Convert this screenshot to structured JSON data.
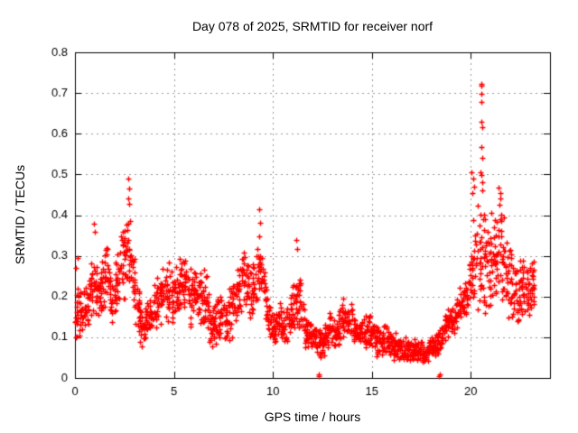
{
  "chart_data": {
    "type": "scatter",
    "title": "Day 078 of 2025, SRMTID for receiver norf",
    "xlabel": "GPS time / hours",
    "ylabel": "SRMTID / TECUs",
    "xlim": [
      0,
      24
    ],
    "ylim": [
      0,
      0.8
    ],
    "x_max_data": 23.2,
    "xticks": {
      "values": [
        0,
        5,
        10,
        15,
        20
      ],
      "labels": [
        "0",
        "5",
        "10",
        "15",
        "20"
      ]
    },
    "yticks": {
      "values": [
        0,
        0.1,
        0.2,
        0.3,
        0.4,
        0.5,
        0.6,
        0.7,
        0.8
      ],
      "labels": [
        "0",
        "0.1",
        "0.2",
        "0.3",
        "0.4",
        "0.5",
        "0.6",
        "0.7",
        "0.8"
      ]
    },
    "grid": true,
    "legend": null,
    "marker": "plus",
    "marker_size_px": 7,
    "colors": {
      "marker": "#ff0000",
      "grid": "#999999",
      "frame": "#000000",
      "background": "#ffffff",
      "text": "#000000"
    },
    "band_bin_hours": 0.25,
    "points_per_bin": 20,
    "density_bands": [
      [
        0.09,
        0.27
      ],
      [
        0.1,
        0.22
      ],
      [
        0.11,
        0.25
      ],
      [
        0.14,
        0.34
      ],
      [
        0.13,
        0.3
      ],
      [
        0.14,
        0.32
      ],
      [
        0.18,
        0.35
      ],
      [
        0.1,
        0.26
      ],
      [
        0.14,
        0.34
      ],
      [
        0.18,
        0.42
      ],
      [
        0.2,
        0.46
      ],
      [
        0.15,
        0.36
      ],
      [
        0.1,
        0.26
      ],
      [
        0.06,
        0.18
      ],
      [
        0.08,
        0.2
      ],
      [
        0.1,
        0.22
      ],
      [
        0.11,
        0.25
      ],
      [
        0.13,
        0.29
      ],
      [
        0.14,
        0.31
      ],
      [
        0.12,
        0.28
      ],
      [
        0.14,
        0.3
      ],
      [
        0.16,
        0.32
      ],
      [
        0.14,
        0.3
      ],
      [
        0.12,
        0.28
      ],
      [
        0.13,
        0.28
      ],
      [
        0.12,
        0.27
      ],
      [
        0.1,
        0.3
      ],
      [
        0.06,
        0.2
      ],
      [
        0.07,
        0.2
      ],
      [
        0.09,
        0.22
      ],
      [
        0.08,
        0.2
      ],
      [
        0.09,
        0.24
      ],
      [
        0.11,
        0.27
      ],
      [
        0.14,
        0.3
      ],
      [
        0.16,
        0.32
      ],
      [
        0.14,
        0.3
      ],
      [
        0.16,
        0.32
      ],
      [
        0.18,
        0.34
      ],
      [
        0.11,
        0.27
      ],
      [
        0.07,
        0.17
      ],
      [
        0.07,
        0.17
      ],
      [
        0.09,
        0.19
      ],
      [
        0.07,
        0.17
      ],
      [
        0.09,
        0.21
      ],
      [
        0.12,
        0.3
      ],
      [
        0.11,
        0.27
      ],
      [
        0.07,
        0.17
      ],
      [
        0.05,
        0.15
      ],
      [
        0.05,
        0.14
      ],
      [
        0.04,
        0.13
      ],
      [
        0.05,
        0.15
      ],
      [
        0.07,
        0.17
      ],
      [
        0.05,
        0.15
      ],
      [
        0.07,
        0.17
      ],
      [
        0.09,
        0.21
      ],
      [
        0.09,
        0.21
      ],
      [
        0.07,
        0.17
      ],
      [
        0.06,
        0.15
      ],
      [
        0.06,
        0.16
      ],
      [
        0.06,
        0.17
      ],
      [
        0.05,
        0.14
      ],
      [
        0.05,
        0.13
      ],
      [
        0.05,
        0.15
      ],
      [
        0.04,
        0.15
      ],
      [
        0.04,
        0.12
      ],
      [
        0.03,
        0.11
      ],
      [
        0.03,
        0.1
      ],
      [
        0.04,
        0.11
      ],
      [
        0.03,
        0.1
      ],
      [
        0.04,
        0.1
      ],
      [
        0.03,
        0.09
      ],
      [
        0.04,
        0.1
      ],
      [
        0.05,
        0.12
      ],
      [
        0.05,
        0.13
      ],
      [
        0.08,
        0.16
      ],
      [
        0.1,
        0.18
      ],
      [
        0.1,
        0.2
      ],
      [
        0.12,
        0.22
      ],
      [
        0.12,
        0.24
      ],
      [
        0.14,
        0.28
      ],
      [
        0.15,
        0.43
      ],
      [
        0.14,
        0.44
      ],
      [
        0.12,
        0.46
      ],
      [
        0.13,
        0.4
      ],
      [
        0.15,
        0.44
      ],
      [
        0.17,
        0.45
      ],
      [
        0.15,
        0.45
      ],
      [
        0.13,
        0.35
      ],
      [
        0.14,
        0.32
      ],
      [
        0.12,
        0.3
      ],
      [
        0.14,
        0.3
      ],
      [
        0.12,
        0.28
      ],
      [
        0.14,
        0.3
      ]
    ],
    "outliers": [
      [
        0.05,
        0.27
      ],
      [
        0.12,
        0.295
      ],
      [
        0.97,
        0.38
      ],
      [
        1.0,
        0.358
      ],
      [
        2.68,
        0.44
      ],
      [
        2.7,
        0.49
      ],
      [
        2.72,
        0.465
      ],
      [
        2.75,
        0.428
      ],
      [
        9.32,
        0.347
      ],
      [
        9.33,
        0.415
      ],
      [
        9.35,
        0.382
      ],
      [
        11.2,
        0.34
      ],
      [
        11.23,
        0.318
      ],
      [
        12.3,
        0.004
      ],
      [
        12.33,
        0.008
      ],
      [
        18.4,
        0.004
      ],
      [
        18.44,
        0.008
      ],
      [
        20.05,
        0.505
      ],
      [
        20.08,
        0.455
      ],
      [
        20.1,
        0.49
      ],
      [
        20.15,
        0.47
      ],
      [
        20.51,
        0.722
      ],
      [
        20.53,
        0.718
      ],
      [
        20.52,
        0.697
      ],
      [
        20.54,
        0.678
      ],
      [
        20.55,
        0.63
      ],
      [
        20.56,
        0.616
      ],
      [
        20.55,
        0.567
      ],
      [
        20.56,
        0.54
      ],
      [
        20.5,
        0.505
      ],
      [
        20.52,
        0.498
      ],
      [
        20.58,
        0.48
      ],
      [
        20.6,
        0.462
      ],
      [
        21.42,
        0.468
      ],
      [
        21.45,
        0.425
      ],
      [
        21.48,
        0.455
      ],
      [
        21.5,
        0.44
      ],
      [
        21.52,
        0.385
      ],
      [
        21.55,
        0.402
      ]
    ]
  }
}
